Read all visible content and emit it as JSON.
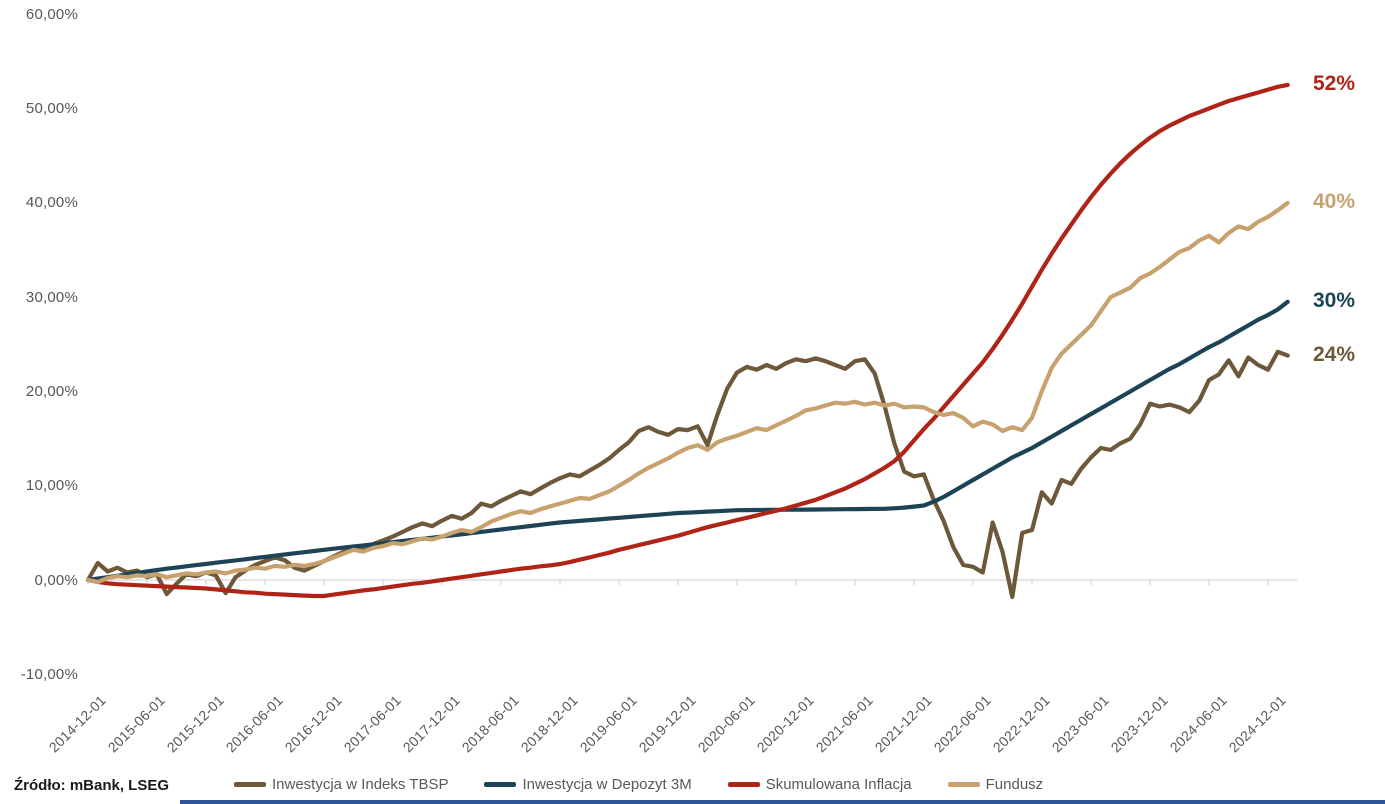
{
  "source_label": "Źródło: mBank, LSEG",
  "bottom_bar_color": "#2f5496",
  "chart_data": {
    "type": "line",
    "title": "",
    "xlabel": "",
    "ylabel": "",
    "start_month": "2014-12",
    "months_per_point": 1,
    "ticks_every_points": 6,
    "grid": "zero-axis-only",
    "legend_position": "bottom",
    "axis_color": "#d6d6d6",
    "label_color": "#54575c",
    "ylim": [
      -10,
      60
    ],
    "y_ticks": [
      {
        "label": "60,00%",
        "value": 60
      },
      {
        "label": "50,00%",
        "value": 50
      },
      {
        "label": "40,00%",
        "value": 40
      },
      {
        "label": "30,00%",
        "value": 30
      },
      {
        "label": "20,00%",
        "value": 20
      },
      {
        "label": "10,00%",
        "value": 10
      },
      {
        "label": "0,00%",
        "value": 0
      },
      {
        "label": "-10,00%",
        "value": -10
      }
    ],
    "x_tick_labels": [
      "2014-12-01",
      "2015-06-01",
      "2015-12-01",
      "2016-06-01",
      "2016-12-01",
      "2017-06-01",
      "2017-12-01",
      "2018-06-01",
      "2018-12-01",
      "2019-06-01",
      "2019-12-01",
      "2020-06-01",
      "2020-12-01",
      "2021-06-01",
      "2021-12-01",
      "2022-06-01",
      "2022-12-01",
      "2023-06-01",
      "2023-12-01",
      "2024-06-01",
      "2024-12-01"
    ],
    "series": [
      {
        "name": "Inwestycja w Indeks TBSP",
        "color": "#6d5839",
        "end_label": "24%",
        "values": [
          0.0,
          1.8,
          0.9,
          1.3,
          0.8,
          1.0,
          0.3,
          0.6,
          -1.5,
          -0.4,
          0.6,
          0.4,
          0.8,
          0.5,
          -1.4,
          0.3,
          1.0,
          1.6,
          2.0,
          2.4,
          2.1,
          1.3,
          1.0,
          1.5,
          2.0,
          2.5,
          3.0,
          3.5,
          3.2,
          3.8,
          4.2,
          4.6,
          5.1,
          5.6,
          6.0,
          5.7,
          6.3,
          6.8,
          6.5,
          7.1,
          8.1,
          7.8,
          8.4,
          8.9,
          9.4,
          9.1,
          9.7,
          10.3,
          10.8,
          11.2,
          11.0,
          11.6,
          12.2,
          12.9,
          13.8,
          14.6,
          15.8,
          16.2,
          15.7,
          15.4,
          16.0,
          15.9,
          16.3,
          14.3,
          17.5,
          20.3,
          22.0,
          22.6,
          22.3,
          22.8,
          22.4,
          23.0,
          23.4,
          23.2,
          23.5,
          23.2,
          22.8,
          22.4,
          23.2,
          23.4,
          21.9,
          18.5,
          14.5,
          11.5,
          11.0,
          11.2,
          8.5,
          6.3,
          3.5,
          1.6,
          1.4,
          0.8,
          6.1,
          3.0,
          -1.8,
          5.0,
          5.3,
          9.3,
          8.1,
          10.6,
          10.2,
          11.8,
          13.0,
          14.0,
          13.8,
          14.5,
          15.0,
          16.5,
          18.7,
          18.4,
          18.6,
          18.3,
          17.8,
          19.0,
          21.2,
          21.8,
          23.3,
          21.6,
          23.6,
          22.8,
          22.3,
          24.2,
          23.8
        ]
      },
      {
        "name": "Inwestycja w Depozyt 3M",
        "color": "#1d4456",
        "end_label": "30%",
        "values": [
          0.0,
          0.15,
          0.3,
          0.45,
          0.6,
          0.75,
          0.9,
          1.05,
          1.2,
          1.32,
          1.45,
          1.58,
          1.7,
          1.83,
          1.95,
          2.08,
          2.2,
          2.33,
          2.45,
          2.58,
          2.7,
          2.83,
          2.95,
          3.08,
          3.2,
          3.32,
          3.44,
          3.55,
          3.67,
          3.79,
          3.9,
          4.02,
          4.14,
          4.25,
          4.37,
          4.49,
          4.6,
          4.73,
          4.85,
          4.98,
          5.1,
          5.23,
          5.35,
          5.48,
          5.6,
          5.73,
          5.85,
          5.98,
          6.1,
          6.18,
          6.27,
          6.35,
          6.43,
          6.52,
          6.6,
          6.68,
          6.77,
          6.85,
          6.93,
          7.02,
          7.1,
          7.15,
          7.2,
          7.25,
          7.3,
          7.35,
          7.4,
          7.41,
          7.42,
          7.43,
          7.44,
          7.45,
          7.46,
          7.47,
          7.48,
          7.49,
          7.5,
          7.51,
          7.52,
          7.53,
          7.54,
          7.55,
          7.6,
          7.68,
          7.78,
          7.9,
          8.3,
          8.8,
          9.4,
          10.0,
          10.6,
          11.2,
          11.8,
          12.4,
          13.0,
          13.5,
          14.0,
          14.6,
          15.2,
          15.8,
          16.4,
          17.0,
          17.6,
          18.2,
          18.8,
          19.4,
          20.0,
          20.6,
          21.2,
          21.8,
          22.4,
          22.9,
          23.5,
          24.1,
          24.7,
          25.2,
          25.8,
          26.4,
          27.0,
          27.6,
          28.1,
          28.7,
          29.5
        ]
      },
      {
        "name": "Skumulowana Inflacja",
        "color": "#b02418",
        "end_label": "52%",
        "values": [
          0.0,
          -0.2,
          -0.35,
          -0.45,
          -0.5,
          -0.55,
          -0.6,
          -0.65,
          -0.7,
          -0.75,
          -0.8,
          -0.85,
          -0.9,
          -1.0,
          -1.1,
          -1.2,
          -1.3,
          -1.35,
          -1.45,
          -1.5,
          -1.55,
          -1.6,
          -1.65,
          -1.7,
          -1.7,
          -1.55,
          -1.4,
          -1.25,
          -1.1,
          -1.0,
          -0.85,
          -0.7,
          -0.55,
          -0.4,
          -0.3,
          -0.15,
          0.0,
          0.15,
          0.3,
          0.45,
          0.6,
          0.75,
          0.9,
          1.05,
          1.2,
          1.3,
          1.45,
          1.55,
          1.7,
          1.9,
          2.15,
          2.4,
          2.65,
          2.9,
          3.2,
          3.45,
          3.7,
          3.95,
          4.2,
          4.45,
          4.7,
          5.0,
          5.3,
          5.6,
          5.85,
          6.1,
          6.35,
          6.6,
          6.85,
          7.1,
          7.35,
          7.6,
          7.9,
          8.2,
          8.5,
          8.9,
          9.3,
          9.7,
          10.2,
          10.7,
          11.3,
          11.9,
          12.6,
          13.6,
          14.8,
          16.0,
          17.1,
          18.3,
          19.5,
          20.7,
          21.9,
          23.1,
          24.5,
          26.0,
          27.6,
          29.3,
          31.1,
          32.9,
          34.6,
          36.2,
          37.7,
          39.2,
          40.6,
          41.9,
          43.1,
          44.2,
          45.2,
          46.1,
          46.9,
          47.6,
          48.2,
          48.7,
          49.2,
          49.6,
          50.0,
          50.4,
          50.8,
          51.1,
          51.4,
          51.7,
          52.0,
          52.3,
          52.5
        ]
      },
      {
        "name": "Fundusz",
        "color": "#c8a26e",
        "end_label": "40%",
        "values": [
          0.0,
          -0.2,
          0.2,
          0.4,
          0.3,
          0.5,
          0.4,
          0.6,
          0.3,
          0.5,
          0.7,
          0.6,
          0.8,
          0.9,
          0.7,
          1.0,
          1.1,
          1.3,
          1.2,
          1.5,
          1.4,
          1.6,
          1.5,
          1.7,
          2.0,
          2.4,
          2.8,
          3.2,
          3.0,
          3.4,
          3.6,
          3.9,
          3.8,
          4.1,
          4.4,
          4.3,
          4.6,
          5.0,
          5.3,
          5.1,
          5.6,
          6.2,
          6.6,
          7.0,
          7.3,
          7.1,
          7.5,
          7.8,
          8.1,
          8.4,
          8.7,
          8.6,
          9.0,
          9.4,
          10.0,
          10.6,
          11.3,
          11.9,
          12.4,
          12.9,
          13.5,
          14.0,
          14.3,
          13.8,
          14.6,
          15.0,
          15.3,
          15.7,
          16.1,
          15.9,
          16.4,
          16.9,
          17.4,
          18.0,
          18.2,
          18.5,
          18.8,
          18.7,
          18.9,
          18.6,
          18.8,
          18.5,
          18.7,
          18.3,
          18.4,
          18.3,
          17.8,
          17.5,
          17.7,
          17.2,
          16.3,
          16.8,
          16.5,
          15.8,
          16.2,
          15.9,
          17.2,
          20.0,
          22.5,
          24.0,
          25.0,
          26.0,
          27.0,
          28.5,
          30.0,
          30.5,
          31.0,
          32.0,
          32.5,
          33.2,
          34.0,
          34.8,
          35.2,
          36.0,
          36.5,
          35.8,
          36.8,
          37.5,
          37.2,
          38.0,
          38.5,
          39.2,
          40.0
        ]
      }
    ]
  }
}
